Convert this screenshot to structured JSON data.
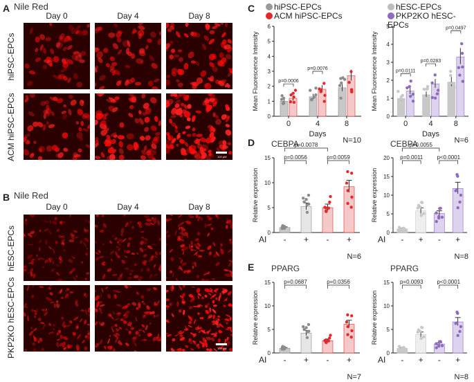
{
  "panels": {
    "a": {
      "letter": "A",
      "title": "Nile Red",
      "columns": [
        "Day 0",
        "Day 4",
        "Day 8"
      ],
      "rows": [
        "hiPSC-EPCs",
        "ACM hiPSC-EPCs"
      ],
      "scale": "100 µM"
    },
    "b": {
      "letter": "B",
      "title": "Nile Red",
      "columns": [
        "Day 0",
        "Day 4",
        "Day 8"
      ],
      "rows": [
        "hESC-EPCs",
        "PKP2KO hESC-EPCs"
      ],
      "scale": "100 µM"
    },
    "c": {
      "letter": "C"
    },
    "d": {
      "letter": "D"
    },
    "e": {
      "letter": "E"
    }
  },
  "legend_left": {
    "items": [
      {
        "label": "hiPSC-EPCs",
        "color": "#9a9a9a"
      },
      {
        "label": "ACM hiPSC-EPCs",
        "color": "#e32a2a"
      }
    ]
  },
  "legend_right": {
    "items": [
      {
        "label": "hESC-EPCs",
        "color": "#bdbdbd"
      },
      {
        "label": "PKP2KO hESC-EPCs",
        "color": "#8e6bbf"
      }
    ]
  },
  "colors": {
    "gray": "#8c8c8c",
    "lightgray": "#c8c8c8",
    "red": "#e32a2a",
    "pink": "#f6c9c9",
    "purple": "#8e6bbf",
    "lavender": "#ddd3ef"
  },
  "chart_data": [
    {
      "id": "c-left",
      "type": "bar",
      "title": "",
      "ylabel": "Mean Fluorescence Intensity",
      "xlabel": "Days",
      "categories": [
        "0",
        "4",
        "8"
      ],
      "ylim": [
        0,
        6
      ],
      "yticks": [
        0,
        1,
        2,
        3,
        4,
        5,
        6
      ],
      "series": [
        {
          "name": "hiPSC-EPCs",
          "values": [
            1.0,
            1.3,
            1.9
          ]
        },
        {
          "name": "ACM hiPSC-EPCs",
          "values": [
            1.2,
            1.8,
            2.7
          ]
        }
      ],
      "annotations": [
        "p=0.0006",
        "p=0.0076"
      ],
      "n": "N=10"
    },
    {
      "id": "c-right",
      "type": "bar",
      "title": "",
      "ylabel": "Mean Fluorescence Intensity",
      "xlabel": "Days",
      "categories": [
        "0",
        "4",
        "8"
      ],
      "ylim": [
        0,
        5
      ],
      "yticks": [
        0,
        1,
        2,
        3,
        4,
        5
      ],
      "series": [
        {
          "name": "hESC-EPCs",
          "values": [
            1.0,
            1.2,
            1.9
          ]
        },
        {
          "name": "PKP2KO hESC-EPCs",
          "values": [
            1.4,
            1.8,
            3.3
          ]
        }
      ],
      "annotations": [
        "p=0.0111",
        "p=0.0283",
        "p=0.0497"
      ],
      "n": "N=6"
    },
    {
      "id": "d-left",
      "type": "bar",
      "title": "CEBPA",
      "ylabel": "Relative expression",
      "xlabel": "AI",
      "categories": [
        "-",
        "+",
        "-",
        "+"
      ],
      "ylim": [
        0,
        15
      ],
      "yticks": [
        0,
        5,
        10,
        15
      ],
      "values": [
        1.0,
        5.2,
        5.0,
        9.2
      ],
      "annotations": [
        "p=0.0078",
        "p=0.0056",
        "p=0.0059"
      ],
      "n": "N=6"
    },
    {
      "id": "d-right",
      "type": "bar",
      "title": "CEBPA",
      "ylabel": "Relative expression",
      "xlabel": "AI",
      "categories": [
        "-",
        "+",
        "-",
        "+"
      ],
      "ylim": [
        0,
        20
      ],
      "yticks": [
        0,
        5,
        10,
        15,
        20
      ],
      "values": [
        1.0,
        5.8,
        5.1,
        11.8
      ],
      "annotations": [
        "p=0.0055",
        "p=0.0011",
        "p<0.0001"
      ],
      "n": "N=8"
    },
    {
      "id": "e-left",
      "type": "bar",
      "title": "PPARG",
      "ylabel": "Relative expression",
      "xlabel": "AI",
      "categories": [
        "-",
        "+",
        "-",
        "+"
      ],
      "ylim": [
        0,
        15
      ],
      "yticks": [
        0,
        5,
        10,
        15
      ],
      "values": [
        1.0,
        4.2,
        2.6,
        6.1
      ],
      "annotations": [
        "p=0.0687",
        "p=0.0356"
      ],
      "n": "N=7"
    },
    {
      "id": "e-right",
      "type": "bar",
      "title": "PPARG",
      "ylabel": "Relative expression",
      "xlabel": "AI",
      "categories": [
        "-",
        "+",
        "-",
        "+"
      ],
      "ylim": [
        0,
        15
      ],
      "yticks": [
        0,
        5,
        10,
        15
      ],
      "values": [
        1.0,
        3.9,
        1.9,
        6.6
      ],
      "annotations": [
        "p=0.0093",
        "p<0.0001"
      ],
      "n": "N=8"
    }
  ]
}
